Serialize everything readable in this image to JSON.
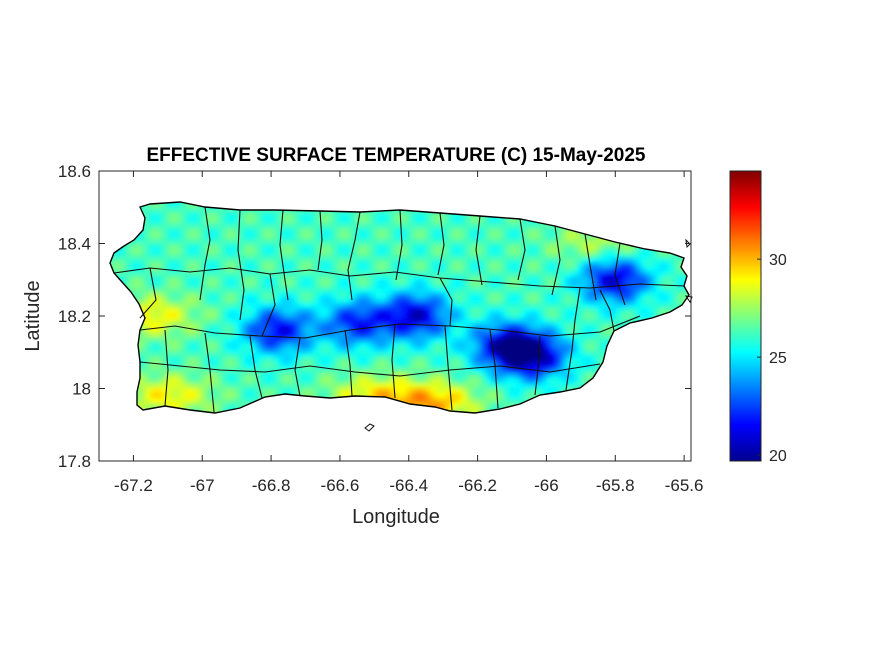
{
  "chart_data": {
    "type": "heatmap",
    "title": "EFFECTIVE SURFACE TEMPERATURE (C) 15-May-2025",
    "xlabel": "Longitude",
    "ylabel": "Latitude",
    "xlim": [
      -67.3,
      -65.58
    ],
    "ylim": [
      17.8,
      18.6
    ],
    "xticks": [
      -67.2,
      -67,
      -66.8,
      -66.6,
      -66.4,
      -66.2,
      -66,
      -65.8,
      -65.6
    ],
    "xtick_labels": [
      "-67.2",
      "-67",
      "-66.8",
      "-66.6",
      "-66.4",
      "-66.2",
      "-66",
      "-65.8",
      "-65.6"
    ],
    "yticks": [
      17.8,
      18.0,
      18.2,
      18.4,
      18.6
    ],
    "ytick_labels": [
      "17.8",
      "18",
      "18.2",
      "18.4",
      "18.6"
    ],
    "grid": false,
    "colorbar": {
      "colormap": "jet",
      "clim": [
        19.7,
        34.5
      ],
      "ticks": [
        20,
        25,
        30
      ],
      "tick_labels": [
        "20",
        "25",
        "30"
      ]
    },
    "cold_cores": [
      {
        "lon": -66.78,
        "lat": 18.16,
        "value": 21.5
      },
      {
        "lon": -66.55,
        "lat": 18.18,
        "value": 22
      },
      {
        "lon": -66.38,
        "lat": 18.2,
        "value": 21
      },
      {
        "lon": -66.12,
        "lat": 18.12,
        "value": 21.5
      },
      {
        "lon": -66.04,
        "lat": 18.09,
        "value": 20.5
      },
      {
        "lon": -65.8,
        "lat": 18.3,
        "value": 21
      }
    ],
    "warm_areas": [
      {
        "lon": -67.15,
        "lat": 18.2,
        "value": 29
      },
      {
        "lon": -67.1,
        "lat": 17.98,
        "value": 29
      },
      {
        "lon": -66.5,
        "lat": 17.98,
        "value": 29
      },
      {
        "lon": -66.33,
        "lat": 17.96,
        "value": 30
      },
      {
        "lon": -65.85,
        "lat": 18.4,
        "value": 28
      }
    ]
  }
}
